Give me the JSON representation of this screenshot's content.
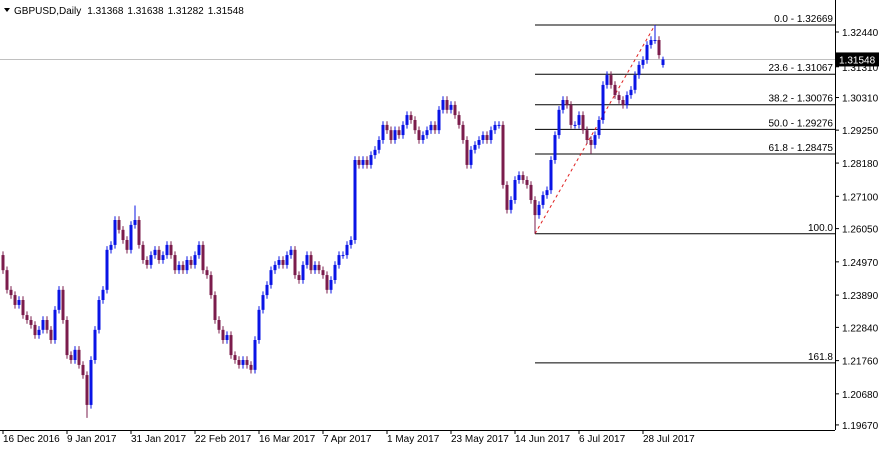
{
  "chart_data": {
    "type": "candlestick",
    "symbol": "GBPUSD,Daily",
    "header_ohlc": [
      1.31368,
      1.31638,
      1.31282,
      1.31548
    ],
    "last_price": 1.31548,
    "bull_color": "#0a14e6",
    "bear_color": "#7b1c4c",
    "xlim": [
      -0.75,
      208
    ],
    "ylim": [
      1.19505,
      1.3348
    ],
    "xticks": [
      {
        "value": 0,
        "label": "16 Dec 2016"
      },
      {
        "value": 16,
        "label": "9 Jan 2017"
      },
      {
        "value": 32,
        "label": "31 Jan 2017"
      },
      {
        "value": 48,
        "label": "22 Feb 2017"
      },
      {
        "value": 64,
        "label": "16 Mar 2017"
      },
      {
        "value": 80,
        "label": "7 Apr 2017"
      },
      {
        "value": 96,
        "label": "1 May 2017"
      },
      {
        "value": 112,
        "label": "23 May 2017"
      },
      {
        "value": 128,
        "label": "14 Jun 2017"
      },
      {
        "value": 144,
        "label": "6 Jul 2017"
      },
      {
        "value": 160,
        "label": "28 Jul 2017"
      }
    ],
    "yticks": [
      {
        "value": 1.3244,
        "label": "1.32440"
      },
      {
        "value": 1.3131,
        "label": "1.31310"
      },
      {
        "value": 1.3031,
        "label": "1.30310"
      },
      {
        "value": 1.2925,
        "label": "1.29250"
      },
      {
        "value": 1.2818,
        "label": "1.28180"
      },
      {
        "value": 1.271,
        "label": "1.27100"
      },
      {
        "value": 1.2605,
        "label": "1.26050"
      },
      {
        "value": 1.2497,
        "label": "1.24970"
      },
      {
        "value": 1.2389,
        "label": "1.23890"
      },
      {
        "value": 1.2284,
        "label": "1.22840"
      },
      {
        "value": 1.2176,
        "label": "1.21760"
      },
      {
        "value": 1.2068,
        "label": "1.20680"
      },
      {
        "value": 1.1967,
        "label": "1.19670"
      }
    ],
    "fibonacci": {
      "from_index": 133,
      "to_index": 163,
      "color": "#000000",
      "trend_color": "#e02020",
      "levels": [
        {
          "value": 1.32669,
          "label": "0.0 - 1.32669"
        },
        {
          "value": 1.31067,
          "label": "23.6 - 1.31067"
        },
        {
          "value": 1.30076,
          "label": "38.2 - 1.30076"
        },
        {
          "value": 1.29276,
          "label": "50.0 - 1.29276"
        },
        {
          "value": 1.28475,
          "label": "61.8 - 1.28475"
        },
        {
          "value": 1.25882,
          "label": "100.0"
        },
        {
          "value": 1.21688,
          "label": "161.8"
        }
      ]
    },
    "open": [
      1.2519,
      1.247,
      1.2406,
      1.2389,
      1.2357,
      1.2373,
      1.2324,
      1.2308,
      1.2292,
      1.2259,
      1.2276,
      1.2308,
      1.2276,
      1.2243,
      1.2341,
      1.2406,
      1.2308,
      1.2194,
      1.2178,
      1.2211,
      1.2162,
      1.2129,
      1.2032,
      1.2178,
      1.2276,
      1.2373,
      1.2406,
      1.2536,
      1.2552,
      1.2633,
      1.2601,
      1.2568,
      1.2536,
      1.2617,
      1.2633,
      1.2552,
      1.2503,
      1.2487,
      1.2519,
      1.2536,
      1.2503,
      1.2519,
      1.2552,
      1.2519,
      1.247,
      1.2487,
      1.247,
      1.2503,
      1.2487,
      1.2519,
      1.2552,
      1.247,
      1.2454,
      1.2389,
      1.2308,
      1.2276,
      1.2243,
      1.2259,
      1.2194,
      1.2178,
      1.2162,
      1.2178,
      1.2162,
      1.2146,
      1.2243,
      1.2341,
      1.2389,
      1.2422,
      1.247,
      1.2487,
      1.2503,
      1.2487,
      1.2519,
      1.2536,
      1.2454,
      1.2438,
      1.2487,
      1.2519,
      1.247,
      1.2487,
      1.247,
      1.2454,
      1.2406,
      1.2438,
      1.2487,
      1.2519,
      1.2519,
      1.2552,
      1.2568,
      1.2828,
      1.2812,
      1.2828,
      1.2812,
      1.2844,
      1.2861,
      1.2893,
      1.2942,
      1.2925,
      1.2893,
      1.2925,
      1.2909,
      1.2942,
      1.2974,
      1.2958,
      1.2925,
      1.2893,
      1.2909,
      1.2925,
      1.2942,
      1.2925,
      1.2991,
      1.3023,
      1.2991,
      1.3007,
      1.2974,
      1.2942,
      1.2893,
      1.2812,
      1.2861,
      1.2877,
      1.2893,
      1.2909,
      1.2893,
      1.2925,
      1.2942,
      1.2942,
      1.2747,
      1.2666,
      1.2698,
      1.2763,
      1.2779,
      1.2763,
      1.2747,
      1.2698,
      1.2649,
      1.2682,
      1.2714,
      1.273,
      1.2828,
      1.2909,
      1.2991,
      1.3023,
      1.3007,
      1.2942,
      1.2942,
      1.2974,
      1.2925,
      1.2893,
      1.2877,
      1.2909,
      1.2958,
      1.3072,
      1.3104,
      1.3072,
      1.3039,
      1.3023,
      1.3007,
      1.3039,
      1.3056,
      1.3104,
      1.3137,
      1.3153,
      1.3202,
      1.3218,
      1.3218,
      1.31368
    ],
    "high": [
      1.2531,
      1.2482,
      1.2418,
      1.2401,
      1.2385,
      1.2385,
      1.2336,
      1.232,
      1.2304,
      1.2288,
      1.232,
      1.232,
      1.2288,
      1.2353,
      1.2418,
      1.2418,
      1.232,
      1.2206,
      1.2223,
      1.2223,
      1.2174,
      1.2141,
      1.219,
      1.2288,
      1.2385,
      1.2418,
      1.2548,
      1.2564,
      1.2645,
      1.2645,
      1.2613,
      1.258,
      1.2629,
      1.268,
      1.2645,
      1.2564,
      1.2515,
      1.2531,
      1.2548,
      1.2548,
      1.2531,
      1.2564,
      1.2564,
      1.2531,
      1.2499,
      1.2499,
      1.2515,
      1.2515,
      1.2531,
      1.2564,
      1.2564,
      1.2482,
      1.2466,
      1.2401,
      1.232,
      1.2288,
      1.2271,
      1.2271,
      1.2206,
      1.219,
      1.219,
      1.219,
      1.2174,
      1.2255,
      1.2353,
      1.2401,
      1.2434,
      1.2482,
      1.2499,
      1.2515,
      1.2515,
      1.2531,
      1.2548,
      1.2548,
      1.2466,
      1.2499,
      1.2531,
      1.2531,
      1.2499,
      1.2499,
      1.2482,
      1.2466,
      1.245,
      1.2499,
      1.2531,
      1.2531,
      1.2564,
      1.258,
      1.284,
      1.284,
      1.284,
      1.284,
      1.2856,
      1.2873,
      1.2905,
      1.2954,
      1.2954,
      1.2937,
      1.2937,
      1.2937,
      1.2954,
      1.2986,
      1.2986,
      1.297,
      1.2937,
      1.2921,
      1.2937,
      1.2954,
      1.2954,
      1.3003,
      1.3035,
      1.3035,
      1.3019,
      1.3019,
      1.2986,
      1.2954,
      1.2905,
      1.2873,
      1.2889,
      1.2905,
      1.2921,
      1.2921,
      1.2937,
      1.2954,
      1.2954,
      1.2954,
      1.2759,
      1.271,
      1.2775,
      1.2791,
      1.2791,
      1.2775,
      1.2759,
      1.271,
      1.2694,
      1.2726,
      1.2742,
      1.284,
      1.2921,
      1.3003,
      1.3035,
      1.3035,
      1.3019,
      1.2954,
      1.2986,
      1.2986,
      1.2937,
      1.2905,
      1.2921,
      1.297,
      1.3084,
      1.3116,
      1.3116,
      1.3084,
      1.3051,
      1.3035,
      1.3051,
      1.3068,
      1.3116,
      1.3149,
      1.3165,
      1.3214,
      1.323,
      1.32669,
      1.323,
      1.31638
    ],
    "low": [
      1.2458,
      1.2394,
      1.2377,
      1.2345,
      1.2345,
      1.2312,
      1.2296,
      1.228,
      1.2247,
      1.2247,
      1.2264,
      1.2264,
      1.2231,
      1.2231,
      1.2329,
      1.2296,
      1.2182,
      1.2166,
      1.2166,
      1.215,
      1.2117,
      1.199,
      1.202,
      1.2166,
      1.2264,
      1.2361,
      1.2394,
      1.2524,
      1.254,
      1.2589,
      1.2556,
      1.2524,
      1.2524,
      1.2605,
      1.254,
      1.2491,
      1.2475,
      1.2475,
      1.2507,
      1.2491,
      1.2491,
      1.2507,
      1.2507,
      1.2458,
      1.2458,
      1.2458,
      1.2458,
      1.2475,
      1.2475,
      1.2507,
      1.2458,
      1.2442,
      1.2377,
      1.2296,
      1.2264,
      1.2231,
      1.2231,
      1.2182,
      1.2166,
      1.215,
      1.215,
      1.215,
      1.2134,
      1.2134,
      1.2231,
      1.2329,
      1.2377,
      1.241,
      1.2458,
      1.2475,
      1.2475,
      1.2475,
      1.2507,
      1.2442,
      1.2426,
      1.2426,
      1.2475,
      1.2458,
      1.2458,
      1.2458,
      1.2442,
      1.2394,
      1.2394,
      1.2426,
      1.2475,
      1.2507,
      1.2507,
      1.254,
      1.2556,
      1.28,
      1.28,
      1.28,
      1.28,
      1.2832,
      1.2849,
      1.2881,
      1.2913,
      1.2881,
      1.2881,
      1.2897,
      1.2897,
      1.293,
      1.2946,
      1.2913,
      1.2881,
      1.2881,
      1.2897,
      1.2913,
      1.2913,
      1.2913,
      1.2979,
      1.2979,
      1.2979,
      1.2962,
      1.293,
      1.2881,
      1.28,
      1.28,
      1.2849,
      1.2865,
      1.2881,
      1.2881,
      1.2881,
      1.2913,
      1.293,
      1.2735,
      1.2654,
      1.2654,
      1.2686,
      1.2751,
      1.2751,
      1.2735,
      1.2686,
      1.25882,
      1.2637,
      1.267,
      1.2702,
      1.2718,
      1.2816,
      1.2897,
      1.2979,
      1.2995,
      1.293,
      1.293,
      1.293,
      1.2913,
      1.2881,
      1.2848,
      1.2865,
      1.2897,
      1.2946,
      1.306,
      1.306,
      1.3027,
      1.3011,
      1.2995,
      1.2995,
      1.3027,
      1.3044,
      1.3092,
      1.3125,
      1.3141,
      1.319,
      1.3206,
      1.3157,
      1.31282
    ],
    "close": [
      1.247,
      1.2406,
      1.2389,
      1.2357,
      1.2373,
      1.2324,
      1.2308,
      1.2292,
      1.2259,
      1.2276,
      1.2308,
      1.2276,
      1.2243,
      1.2341,
      1.2406,
      1.2308,
      1.2194,
      1.2178,
      1.2211,
      1.2162,
      1.2129,
      1.2032,
      1.2178,
      1.2276,
      1.2373,
      1.2406,
      1.2536,
      1.2552,
      1.2633,
      1.2601,
      1.2568,
      1.2536,
      1.2617,
      1.2633,
      1.2552,
      1.2503,
      1.2487,
      1.2519,
      1.2536,
      1.2503,
      1.2519,
      1.2552,
      1.2519,
      1.247,
      1.2487,
      1.247,
      1.2503,
      1.2487,
      1.2519,
      1.2552,
      1.247,
      1.2454,
      1.2389,
      1.2308,
      1.2276,
      1.2243,
      1.2259,
      1.2194,
      1.2178,
      1.2162,
      1.2178,
      1.2162,
      1.2146,
      1.2243,
      1.2341,
      1.2389,
      1.2422,
      1.247,
      1.2487,
      1.2503,
      1.2487,
      1.2519,
      1.2536,
      1.2454,
      1.2438,
      1.2487,
      1.2519,
      1.247,
      1.2487,
      1.247,
      1.2454,
      1.2406,
      1.2438,
      1.2487,
      1.2519,
      1.2519,
      1.2552,
      1.2568,
      1.2828,
      1.2812,
      1.2828,
      1.2812,
      1.2844,
      1.2861,
      1.2893,
      1.2942,
      1.2925,
      1.2893,
      1.2925,
      1.2909,
      1.2942,
      1.2974,
      1.2958,
      1.2925,
      1.2893,
      1.2909,
      1.2925,
      1.2942,
      1.2925,
      1.2991,
      1.3023,
      1.2991,
      1.3007,
      1.2974,
      1.2942,
      1.2893,
      1.2812,
      1.2861,
      1.2877,
      1.2893,
      1.2909,
      1.2893,
      1.2925,
      1.2942,
      1.2942,
      1.2747,
      1.2666,
      1.2698,
      1.2763,
      1.2779,
      1.2763,
      1.2747,
      1.2698,
      1.2649,
      1.2682,
      1.2714,
      1.273,
      1.2828,
      1.2909,
      1.2991,
      1.3023,
      1.3007,
      1.2942,
      1.2942,
      1.2974,
      1.2925,
      1.2893,
      1.2877,
      1.2909,
      1.2958,
      1.3072,
      1.3104,
      1.3072,
      1.3039,
      1.3023,
      1.3007,
      1.3039,
      1.3056,
      1.3104,
      1.3137,
      1.3153,
      1.3202,
      1.3218,
      1.3218,
      1.3169,
      1.31548
    ]
  }
}
